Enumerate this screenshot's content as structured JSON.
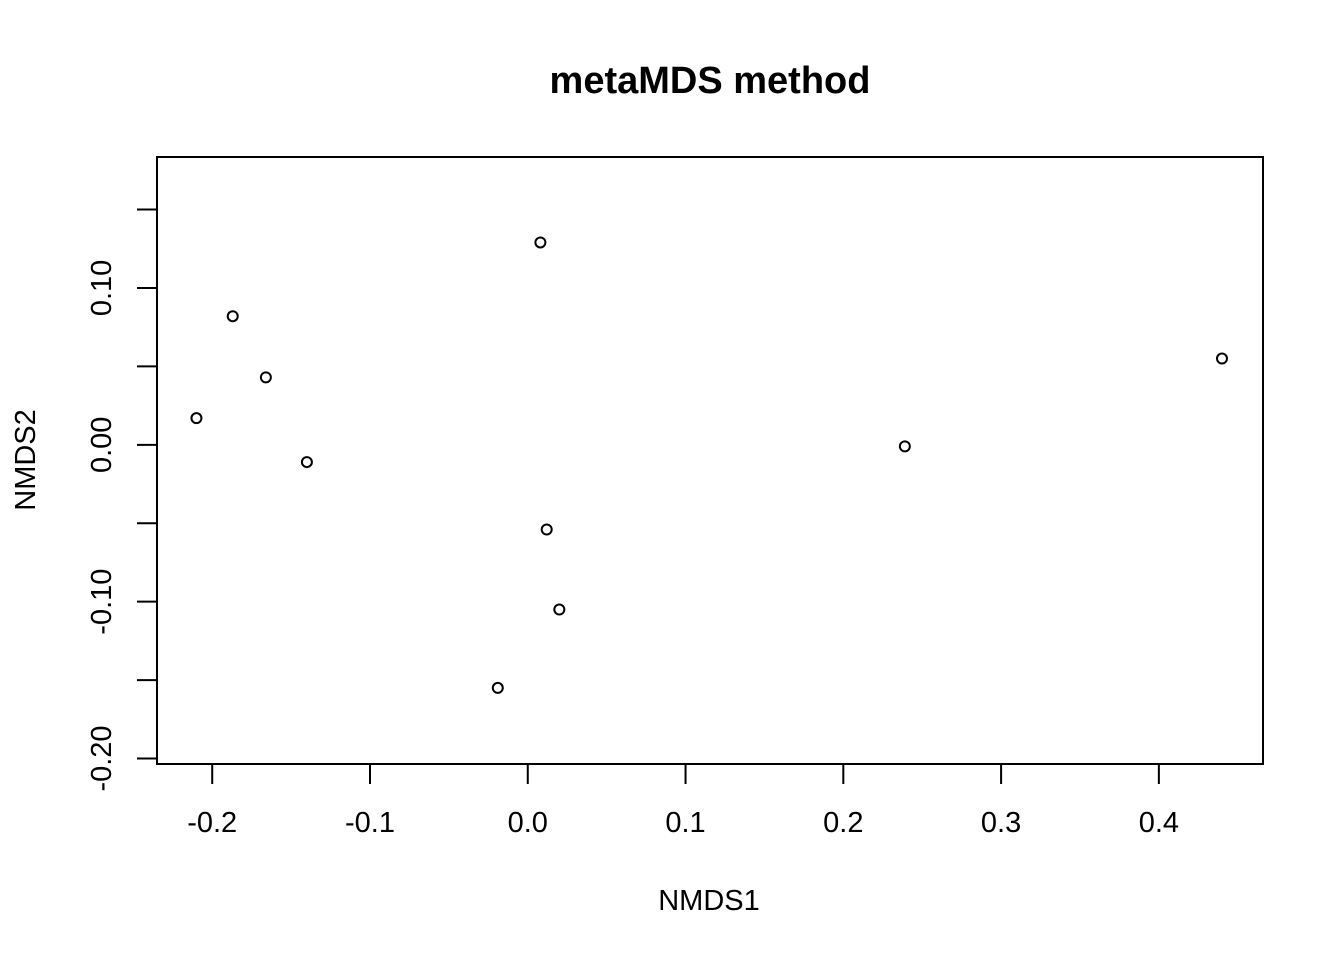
{
  "chart_data": {
    "type": "scatter",
    "title": "metaMDS method",
    "xlabel": "NMDS1",
    "ylabel": "NMDS2",
    "xlim": [
      -0.235,
      0.466
    ],
    "ylim": [
      -0.2035,
      0.1835
    ],
    "x_ticks": [
      -0.2,
      -0.1,
      0.0,
      0.1,
      0.2,
      0.3,
      0.4
    ],
    "x_tick_labels": [
      "-0.2",
      "-0.1",
      "0.0",
      "0.1",
      "0.2",
      "0.3",
      "0.4"
    ],
    "y_ticks": [
      -0.2,
      -0.15,
      -0.1,
      -0.05,
      0.0,
      0.05,
      0.1,
      0.15
    ],
    "y_tick_labels": [
      "-0.20",
      "",
      "-0.10",
      "",
      "0.00",
      "",
      "0.10",
      ""
    ],
    "grid": false,
    "legend": "none",
    "marker": "open-circle",
    "points": [
      {
        "x": -0.21,
        "y": 0.017
      },
      {
        "x": -0.187,
        "y": 0.082
      },
      {
        "x": -0.166,
        "y": 0.043
      },
      {
        "x": -0.14,
        "y": -0.011
      },
      {
        "x": 0.008,
        "y": 0.129
      },
      {
        "x": 0.012,
        "y": -0.054
      },
      {
        "x": 0.02,
        "y": -0.105
      },
      {
        "x": -0.019,
        "y": -0.155
      },
      {
        "x": 0.239,
        "y": -0.001
      },
      {
        "x": 0.44,
        "y": 0.055
      }
    ]
  },
  "colors": {
    "background": "#ffffff",
    "foreground": "#000000"
  }
}
